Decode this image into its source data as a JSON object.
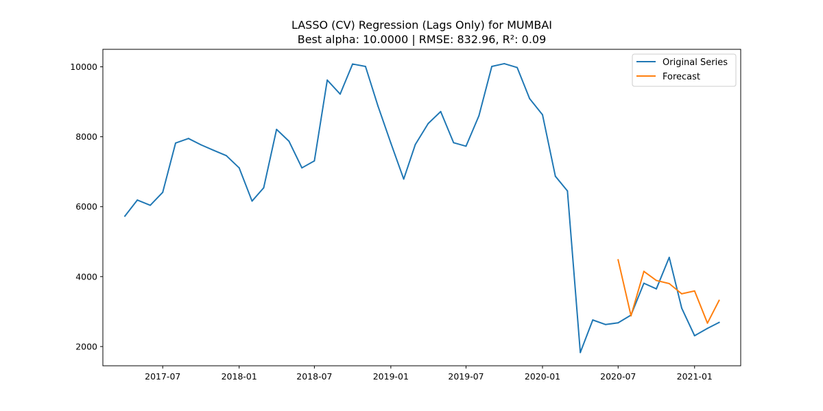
{
  "chart_data": {
    "type": "line",
    "title": "LASSO (CV) Regression (Lags Only) for MUMBAI",
    "subtitle": "Best alpha: 10.0000 | RMSE: 832.96, R²: 0.09",
    "xlabel": "",
    "ylabel": "",
    "x_tick_labels": [
      "2017-07",
      "2018-01",
      "2018-07",
      "2019-01",
      "2019-07",
      "2020-01",
      "2020-07",
      "2021-01"
    ],
    "y_tick_labels": [
      "2000",
      "4000",
      "6000",
      "8000",
      "10000"
    ],
    "xlim": [
      "2017-02-07",
      "2021-04-22"
    ],
    "ylim": [
      1450,
      10500
    ],
    "legend_position": "top-right",
    "grid": false,
    "series": [
      {
        "name": "Original Series",
        "color": "#1f77b4",
        "x": [
          "2017-04-01",
          "2017-05-01",
          "2017-06-01",
          "2017-07-01",
          "2017-08-01",
          "2017-09-01",
          "2017-10-01",
          "2017-11-01",
          "2017-12-01",
          "2018-01-01",
          "2018-02-01",
          "2018-03-01",
          "2018-04-01",
          "2018-05-01",
          "2018-06-01",
          "2018-07-01",
          "2018-08-01",
          "2018-09-01",
          "2018-10-01",
          "2018-11-01",
          "2018-12-01",
          "2019-01-01",
          "2019-02-01",
          "2019-03-01",
          "2019-04-01",
          "2019-05-01",
          "2019-06-01",
          "2019-07-01",
          "2019-08-01",
          "2019-09-01",
          "2019-10-01",
          "2019-11-01",
          "2019-12-01",
          "2020-01-01",
          "2020-02-01",
          "2020-03-01",
          "2020-04-01",
          "2020-05-01",
          "2020-06-01",
          "2020-07-01",
          "2020-08-01",
          "2020-09-01",
          "2020-10-01",
          "2020-11-01",
          "2020-12-01",
          "2021-01-01",
          "2021-02-01",
          "2021-03-01"
        ],
        "values": [
          5730,
          6190,
          6040,
          6410,
          7820,
          7950,
          7770,
          7610,
          7460,
          7110,
          6160,
          6540,
          8210,
          7870,
          7110,
          7310,
          9620,
          9220,
          10080,
          10010,
          8880,
          7820,
          6790,
          7780,
          8380,
          8720,
          7830,
          7730,
          8600,
          10010,
          10090,
          9980,
          9090,
          8630,
          6870,
          6450,
          1830,
          2760,
          2630,
          2680,
          2900,
          3810,
          3650,
          4550,
          3100,
          2310,
          2520,
          2690
        ]
      },
      {
        "name": "Forecast",
        "color": "#ff7f0e",
        "x": [
          "2020-07-01",
          "2020-08-01",
          "2020-09-01",
          "2020-10-01",
          "2020-11-01",
          "2020-12-01",
          "2021-01-01",
          "2021-02-01",
          "2021-03-01"
        ],
        "values": [
          4480,
          2880,
          4150,
          3890,
          3800,
          3510,
          3590,
          2670,
          3320
        ]
      }
    ]
  }
}
